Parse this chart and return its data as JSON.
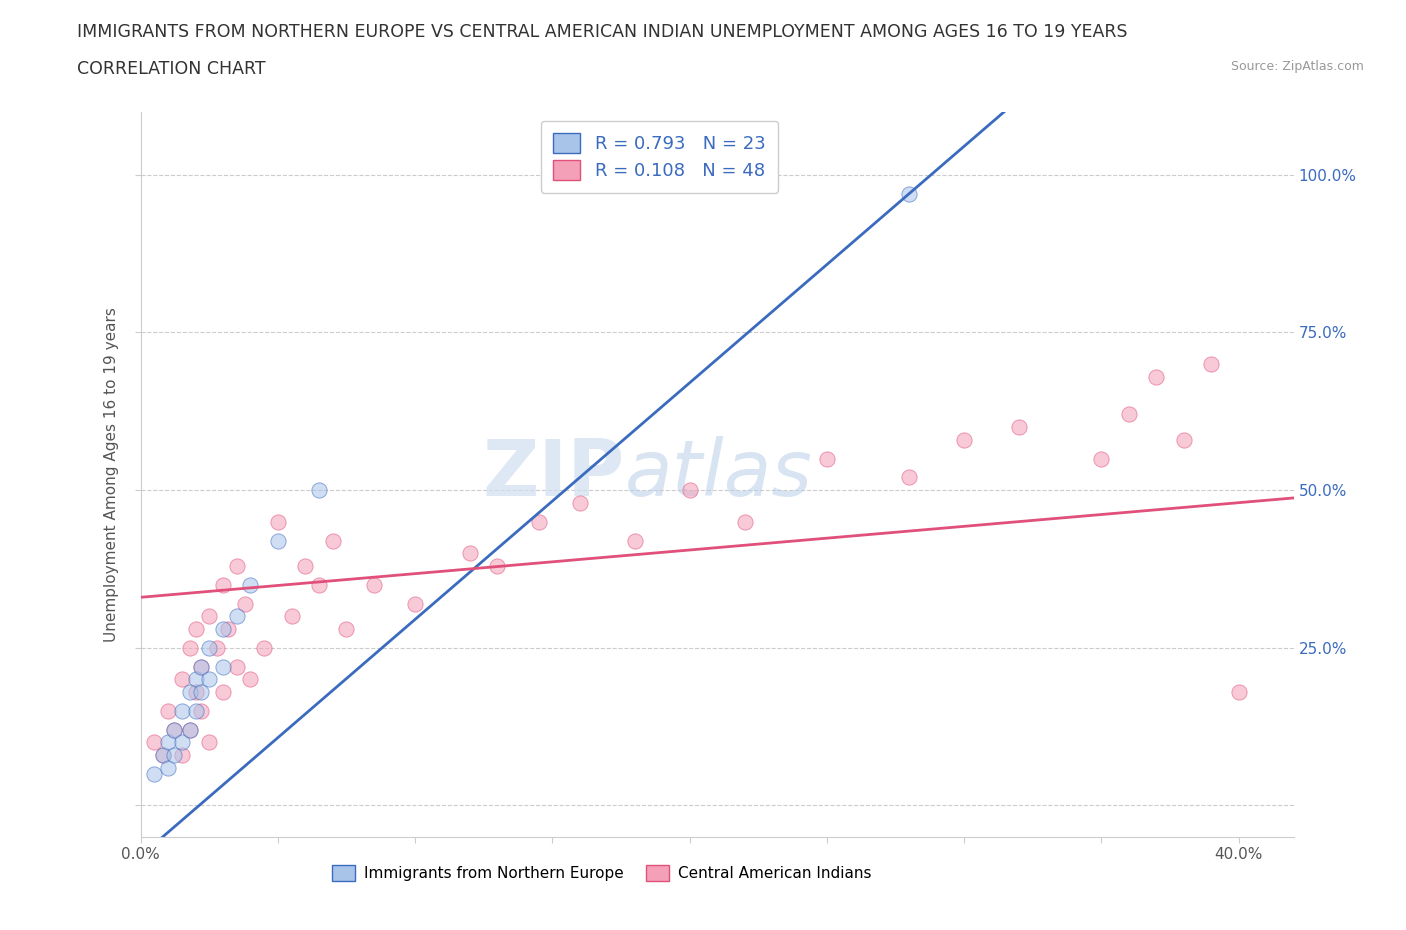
{
  "title": "IMMIGRANTS FROM NORTHERN EUROPE VS CENTRAL AMERICAN INDIAN UNEMPLOYMENT AMONG AGES 16 TO 19 YEARS",
  "subtitle": "CORRELATION CHART",
  "source": "Source: ZipAtlas.com",
  "ylabel": "Unemployment Among Ages 16 to 19 years",
  "xlim": [
    0.0,
    0.42
  ],
  "ylim": [
    -0.05,
    1.1
  ],
  "ytick_positions": [
    0.0,
    0.25,
    0.5,
    0.75,
    1.0
  ],
  "ytick_labels": [
    "",
    "25.0%",
    "50.0%",
    "75.0%",
    "100.0%"
  ],
  "blue_scatter_x": [
    0.005,
    0.008,
    0.01,
    0.01,
    0.012,
    0.012,
    0.015,
    0.015,
    0.018,
    0.018,
    0.02,
    0.02,
    0.022,
    0.022,
    0.025,
    0.025,
    0.03,
    0.03,
    0.035,
    0.04,
    0.05,
    0.065,
    0.28
  ],
  "blue_scatter_y": [
    0.05,
    0.08,
    0.06,
    0.1,
    0.08,
    0.12,
    0.1,
    0.15,
    0.12,
    0.18,
    0.15,
    0.2,
    0.18,
    0.22,
    0.2,
    0.25,
    0.22,
    0.28,
    0.3,
    0.35,
    0.42,
    0.5,
    0.97
  ],
  "pink_scatter_x": [
    0.005,
    0.008,
    0.01,
    0.012,
    0.015,
    0.015,
    0.018,
    0.018,
    0.02,
    0.02,
    0.022,
    0.022,
    0.025,
    0.025,
    0.028,
    0.03,
    0.03,
    0.032,
    0.035,
    0.035,
    0.038,
    0.04,
    0.045,
    0.05,
    0.055,
    0.06,
    0.065,
    0.07,
    0.075,
    0.085,
    0.1,
    0.12,
    0.13,
    0.145,
    0.16,
    0.18,
    0.2,
    0.22,
    0.25,
    0.28,
    0.3,
    0.32,
    0.35,
    0.36,
    0.37,
    0.38,
    0.39,
    0.4
  ],
  "pink_scatter_y": [
    0.1,
    0.08,
    0.15,
    0.12,
    0.08,
    0.2,
    0.12,
    0.25,
    0.18,
    0.28,
    0.15,
    0.22,
    0.1,
    0.3,
    0.25,
    0.18,
    0.35,
    0.28,
    0.22,
    0.38,
    0.32,
    0.2,
    0.25,
    0.45,
    0.3,
    0.38,
    0.35,
    0.42,
    0.28,
    0.35,
    0.32,
    0.4,
    0.38,
    0.45,
    0.48,
    0.42,
    0.5,
    0.45,
    0.55,
    0.52,
    0.58,
    0.6,
    0.55,
    0.62,
    0.68,
    0.58,
    0.7,
    0.18
  ],
  "blue_R": 0.793,
  "blue_N": 23,
  "pink_R": 0.108,
  "pink_N": 48,
  "blue_color": "#a8c4e8",
  "pink_color": "#f4a0b8",
  "blue_line_color": "#3a6bbf",
  "pink_line_color": "#e0507a",
  "watermark_zip": "ZIP",
  "watermark_atlas": "atlas",
  "legend_label_blue": "Immigrants from Northern Europe",
  "legend_label_pink": "Central American Indians",
  "scatter_size": 120,
  "scatter_alpha": 0.55
}
